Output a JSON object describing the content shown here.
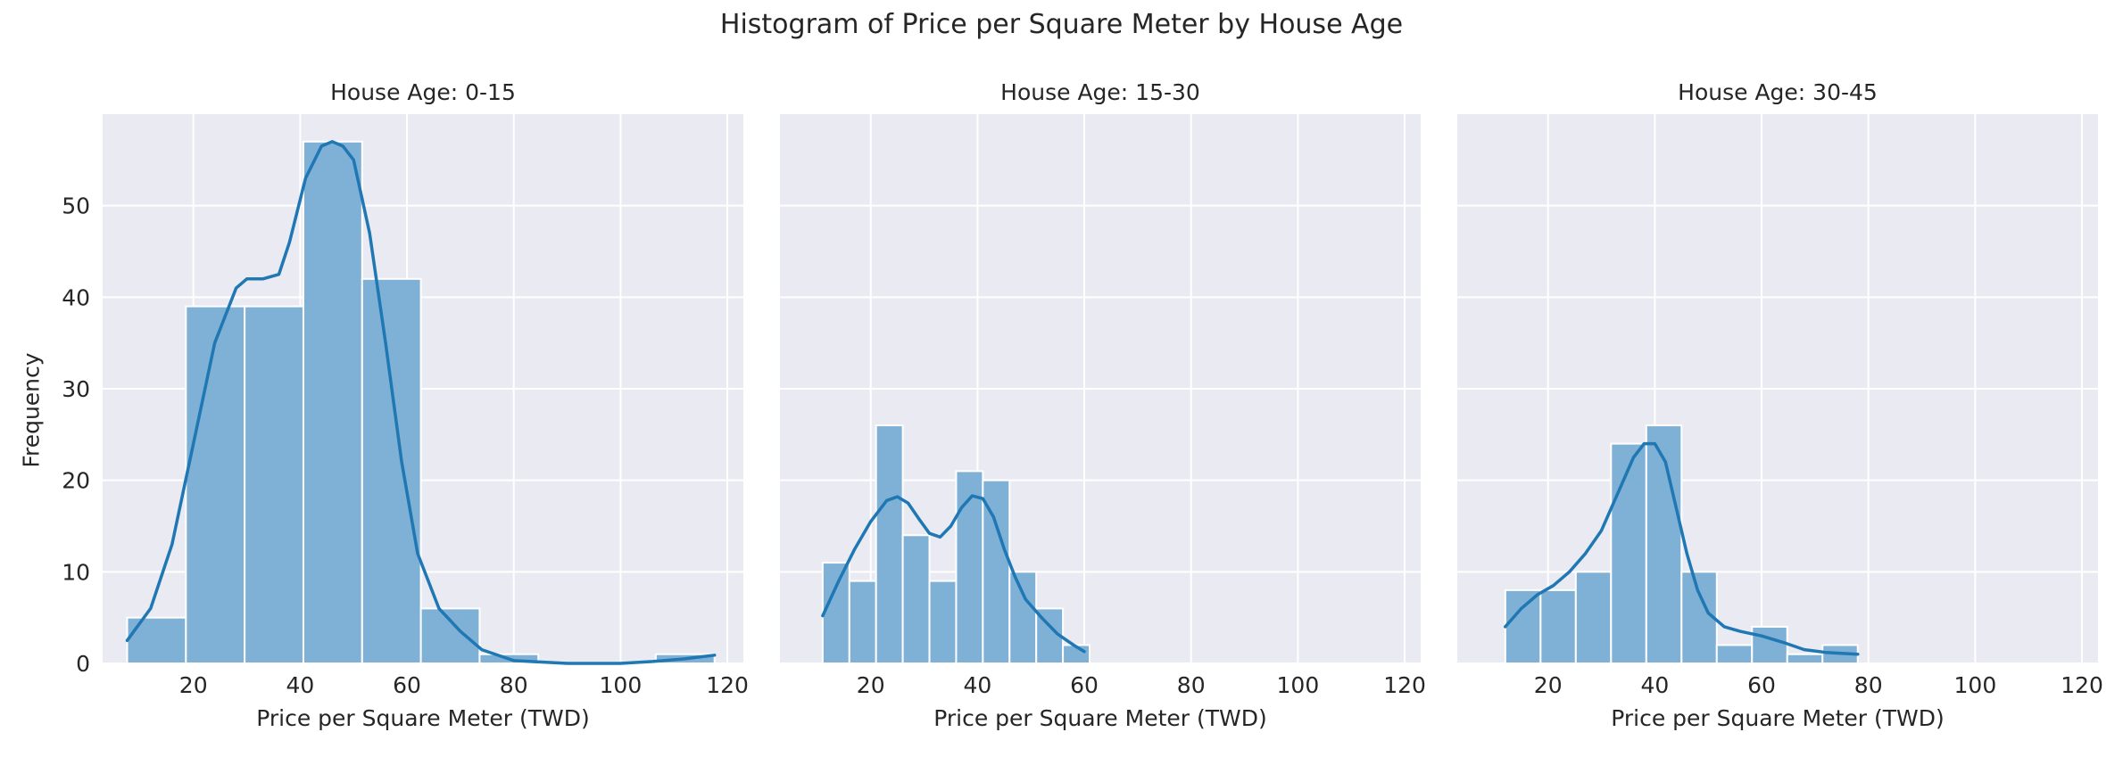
{
  "figure": {
    "title": "Histogram of Price per Square Meter by House Age",
    "ylabel": "Frequency"
  },
  "colors": {
    "background": "#eaeaf2",
    "grid": "#ffffff",
    "bar": "#7fb0d5",
    "bar_edge": "#ffffff",
    "kde": "#1f77b4"
  },
  "chart_data": [
    {
      "type": "bar",
      "title": "House Age: 0-15",
      "xlabel": "Price per Square Meter (TWD)",
      "ylabel": "Frequency",
      "xlim": [
        3,
        123
      ],
      "ylim": [
        0,
        60
      ],
      "xticks": [
        20,
        40,
        60,
        80,
        100,
        120
      ],
      "yticks": [
        0,
        10,
        20,
        30,
        40,
        50
      ],
      "grid": true,
      "bins": [
        {
          "x0": 7.6,
          "x1": 18.6,
          "count": 5
        },
        {
          "x0": 18.6,
          "x1": 29.6,
          "count": 39
        },
        {
          "x0": 29.6,
          "x1": 40.6,
          "count": 39
        },
        {
          "x0": 40.6,
          "x1": 51.6,
          "count": 57
        },
        {
          "x0": 51.6,
          "x1": 62.6,
          "count": 42
        },
        {
          "x0": 62.6,
          "x1": 73.6,
          "count": 6
        },
        {
          "x0": 73.6,
          "x1": 84.6,
          "count": 1
        },
        {
          "x0": 84.6,
          "x1": 95.6,
          "count": 0
        },
        {
          "x0": 95.6,
          "x1": 106.6,
          "count": 0
        },
        {
          "x0": 106.6,
          "x1": 117.6,
          "count": 1
        }
      ],
      "kde": [
        [
          7.6,
          2.5
        ],
        [
          12,
          6
        ],
        [
          16,
          13
        ],
        [
          20,
          24
        ],
        [
          24,
          35
        ],
        [
          28,
          41
        ],
        [
          30,
          42
        ],
        [
          33,
          42
        ],
        [
          36,
          42.5
        ],
        [
          38,
          46
        ],
        [
          41,
          53
        ],
        [
          44,
          56.5
        ],
        [
          46,
          57
        ],
        [
          48,
          56.5
        ],
        [
          50,
          55
        ],
        [
          53,
          47
        ],
        [
          56,
          35
        ],
        [
          59,
          22
        ],
        [
          62,
          12
        ],
        [
          66,
          6
        ],
        [
          70,
          3.5
        ],
        [
          74,
          1.5
        ],
        [
          80,
          0.3
        ],
        [
          90,
          0
        ],
        [
          100,
          0
        ],
        [
          106,
          0.2
        ],
        [
          112,
          0.5
        ],
        [
          117.6,
          0.9
        ]
      ]
    },
    {
      "type": "bar",
      "title": "House Age: 15-30",
      "xlabel": "Price per Square Meter (TWD)",
      "ylabel": "",
      "xlim": [
        3,
        123
      ],
      "ylim": [
        0,
        60
      ],
      "xticks": [
        20,
        40,
        60,
        80,
        100,
        120
      ],
      "yticks": [
        0,
        10,
        20,
        30,
        40,
        50
      ],
      "grid": true,
      "bins": [
        {
          "x0": 11.0,
          "x1": 16.0,
          "count": 11
        },
        {
          "x0": 16.0,
          "x1": 21.0,
          "count": 9
        },
        {
          "x0": 21.0,
          "x1": 26.0,
          "count": 26
        },
        {
          "x0": 26.0,
          "x1": 31.0,
          "count": 14
        },
        {
          "x0": 31.0,
          "x1": 36.0,
          "count": 9
        },
        {
          "x0": 36.0,
          "x1": 41.0,
          "count": 21
        },
        {
          "x0": 41.0,
          "x1": 46.0,
          "count": 20
        },
        {
          "x0": 46.0,
          "x1": 51.0,
          "count": 10
        },
        {
          "x0": 51.0,
          "x1": 56.0,
          "count": 6
        },
        {
          "x0": 56.0,
          "x1": 61.0,
          "count": 2
        }
      ],
      "kde": [
        [
          11,
          5.2
        ],
        [
          14,
          9
        ],
        [
          17,
          12.5
        ],
        [
          20,
          15.5
        ],
        [
          23,
          17.8
        ],
        [
          25,
          18.2
        ],
        [
          27,
          17.5
        ],
        [
          29,
          15.8
        ],
        [
          31,
          14.2
        ],
        [
          33,
          13.8
        ],
        [
          35,
          15
        ],
        [
          37,
          17
        ],
        [
          39,
          18.3
        ],
        [
          41,
          18
        ],
        [
          43,
          16
        ],
        [
          45,
          12.5
        ],
        [
          47,
          9.5
        ],
        [
          49,
          7
        ],
        [
          52,
          5
        ],
        [
          55,
          3.2
        ],
        [
          58,
          2
        ],
        [
          60,
          1.3
        ]
      ]
    },
    {
      "type": "bar",
      "title": "House Age: 30-45",
      "xlabel": "Price per Square Meter (TWD)",
      "ylabel": "",
      "xlim": [
        3,
        123
      ],
      "ylim": [
        0,
        60
      ],
      "xticks": [
        20,
        40,
        60,
        80,
        100,
        120
      ],
      "yticks": [
        0,
        10,
        20,
        30,
        40,
        50
      ],
      "grid": true,
      "bins": [
        {
          "x0": 12.0,
          "x1": 18.6,
          "count": 8
        },
        {
          "x0": 18.6,
          "x1": 25.2,
          "count": 8
        },
        {
          "x0": 25.2,
          "x1": 31.8,
          "count": 10
        },
        {
          "x0": 31.8,
          "x1": 38.4,
          "count": 24
        },
        {
          "x0": 38.4,
          "x1": 45.0,
          "count": 26
        },
        {
          "x0": 45.0,
          "x1": 51.6,
          "count": 10
        },
        {
          "x0": 51.6,
          "x1": 58.2,
          "count": 2
        },
        {
          "x0": 58.2,
          "x1": 64.8,
          "count": 4
        },
        {
          "x0": 64.8,
          "x1": 71.4,
          "count": 1
        },
        {
          "x0": 71.4,
          "x1": 78.0,
          "count": 2
        }
      ],
      "kde": [
        [
          12,
          4
        ],
        [
          15,
          6
        ],
        [
          18,
          7.5
        ],
        [
          21,
          8.5
        ],
        [
          24,
          10
        ],
        [
          27,
          12
        ],
        [
          30,
          14.5
        ],
        [
          33,
          18.5
        ],
        [
          36,
          22.5
        ],
        [
          38,
          24
        ],
        [
          40,
          24
        ],
        [
          42,
          22
        ],
        [
          44,
          17
        ],
        [
          46,
          12
        ],
        [
          48,
          8
        ],
        [
          50,
          5.5
        ],
        [
          53,
          4
        ],
        [
          56,
          3.5
        ],
        [
          60,
          3
        ],
        [
          64,
          2.3
        ],
        [
          68,
          1.5
        ],
        [
          72,
          1.2
        ],
        [
          78,
          1
        ]
      ]
    }
  ]
}
